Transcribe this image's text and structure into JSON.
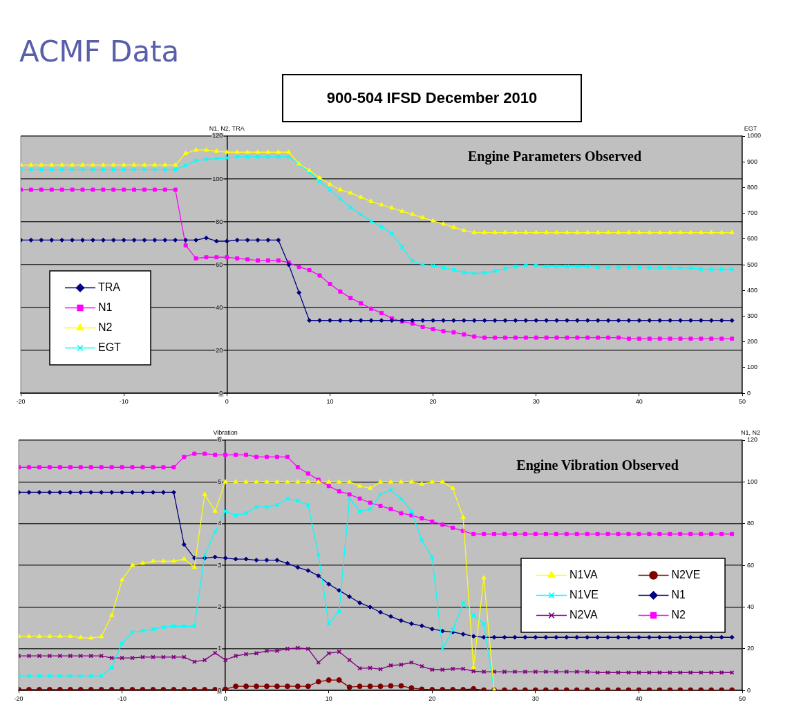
{
  "chart_data": [
    {
      "type": "line",
      "title": "Engine Parameters Observed",
      "annotations": [
        "ACMF Data",
        "900-504 IFSD December 2010"
      ],
      "ylabel": "N1, N2, TRA",
      "y2label": "EGT",
      "x": [
        -20,
        -19,
        -18,
        -17,
        -16,
        -15,
        -14,
        -13,
        -12,
        -11,
        -10,
        -9,
        -8,
        -7,
        -6,
        -5,
        -4,
        -3,
        -2,
        -1,
        0,
        1,
        2,
        3,
        4,
        5,
        6,
        7,
        8,
        9,
        10,
        11,
        12,
        13,
        14,
        15,
        16,
        17,
        18,
        19,
        20,
        21,
        22,
        23,
        24,
        25,
        26,
        27,
        28,
        29,
        30,
        31,
        32,
        33,
        34,
        35,
        36,
        37,
        38,
        39,
        40,
        41,
        42,
        43,
        44,
        45,
        46,
        47,
        48,
        49
      ],
      "xlim": [
        -20,
        50
      ],
      "xticks": [
        -20,
        -10,
        0,
        10,
        20,
        30,
        40,
        50
      ],
      "ylim": [
        0,
        120
      ],
      "yticks": [
        0,
        20,
        40,
        60,
        80,
        100,
        120
      ],
      "y2lim": [
        0,
        1000
      ],
      "y2ticks": [
        0,
        100,
        200,
        300,
        400,
        500,
        600,
        700,
        800,
        900,
        1000
      ],
      "grid": "y",
      "legend": "left",
      "series": [
        {
          "name": "TRA",
          "color": "#000080",
          "marker": "diamond",
          "values": [
            71.5,
            71.5,
            71.5,
            71.5,
            71.5,
            71.5,
            71.5,
            71.5,
            71.5,
            71.5,
            71.5,
            71.5,
            71.5,
            71.5,
            71.5,
            71.5,
            71.5,
            71.5,
            72.5,
            71,
            71,
            71.5,
            71.5,
            71.5,
            71.5,
            71.5,
            60,
            47,
            34,
            34,
            34,
            34,
            34,
            34,
            34,
            34,
            34,
            34,
            34,
            34,
            34,
            34,
            34,
            34,
            34,
            34,
            34,
            34,
            34,
            34,
            34,
            34,
            34,
            34,
            34,
            34,
            34,
            34,
            34,
            34,
            34,
            34,
            34,
            34,
            34,
            34,
            34,
            34,
            34,
            34
          ]
        },
        {
          "name": "N1",
          "color": "#ff00ff",
          "marker": "square",
          "values": [
            95,
            95,
            95,
            95,
            95,
            95,
            95,
            95,
            95,
            95,
            95,
            95,
            95,
            95,
            95,
            95,
            69,
            63,
            63.5,
            63.5,
            63.5,
            63,
            62.5,
            62,
            62,
            62,
            61,
            59,
            57.5,
            55,
            51,
            47.5,
            44.5,
            42,
            39.5,
            37.5,
            35,
            33.5,
            32.5,
            31,
            30,
            29,
            28.5,
            27.5,
            26.5,
            26,
            26,
            26,
            26,
            26,
            26,
            26,
            26,
            26,
            26,
            26,
            26,
            26,
            26,
            25.5,
            25.5,
            25.5,
            25.5,
            25.5,
            25.5,
            25.5,
            25.5,
            25.5,
            25.5,
            25.5
          ]
        },
        {
          "name": "N2",
          "color": "#ffff00",
          "marker": "triangle",
          "values": [
            106.5,
            106.5,
            106.5,
            106.5,
            106.5,
            106.5,
            106.5,
            106.5,
            106.5,
            106.5,
            106.5,
            106.5,
            106.5,
            106.5,
            106.5,
            106.5,
            112,
            113.5,
            113.5,
            113,
            112.5,
            112.5,
            112.5,
            112.5,
            112.5,
            112.5,
            112.5,
            107,
            104,
            100.5,
            97.5,
            95,
            93.5,
            91.5,
            89.5,
            88,
            86.5,
            85,
            83.5,
            82,
            80.5,
            79,
            77.5,
            76,
            75,
            75,
            75,
            75,
            75,
            75,
            75,
            75,
            75,
            75,
            75,
            75,
            75,
            75,
            75,
            75,
            75,
            75,
            75,
            75,
            75,
            75,
            75,
            75,
            75,
            75
          ]
        },
        {
          "name": "EGT",
          "color": "#00ffff",
          "marker": "cross",
          "axis": "y2",
          "values": [
            870,
            870,
            870,
            870,
            870,
            870,
            870,
            870,
            870,
            870,
            870,
            870,
            870,
            870,
            870,
            870,
            887,
            905,
            910,
            912,
            915,
            920,
            920,
            920,
            920,
            920,
            920,
            889,
            862,
            825,
            791,
            757,
            723,
            695,
            670,
            647,
            621,
            569,
            515,
            500,
            495,
            488,
            480,
            470,
            466,
            468,
            475,
            485,
            493,
            498,
            497,
            493,
            493,
            493,
            493,
            493,
            490,
            490,
            490,
            490,
            490,
            487,
            487,
            487,
            487,
            487,
            483,
            483,
            483,
            483
          ]
        }
      ]
    },
    {
      "type": "line",
      "title": "Engine Vibration Observed",
      "ylabel": "Vibration",
      "y2label": "N1, N2",
      "x": [
        -20,
        -19,
        -18,
        -17,
        -16,
        -15,
        -14,
        -13,
        -12,
        -11,
        -10,
        -9,
        -8,
        -7,
        -6,
        -5,
        -4,
        -3,
        -2,
        -1,
        0,
        1,
        2,
        3,
        4,
        5,
        6,
        7,
        8,
        9,
        10,
        11,
        12,
        13,
        14,
        15,
        16,
        17,
        18,
        19,
        20,
        21,
        22,
        23,
        24,
        25,
        26,
        27,
        28,
        29,
        30,
        31,
        32,
        33,
        34,
        35,
        36,
        37,
        38,
        39,
        40,
        41,
        42,
        43,
        44,
        45,
        46,
        47,
        48,
        49
      ],
      "xlim": [
        -20,
        50
      ],
      "xticks": [
        -20,
        -10,
        0,
        10,
        20,
        30,
        40,
        50
      ],
      "ylim": [
        0,
        6
      ],
      "yticks": [
        0,
        1,
        2,
        3,
        4,
        5,
        6
      ],
      "y2lim": [
        0,
        120
      ],
      "y2ticks": [
        0,
        20,
        40,
        60,
        80,
        100,
        120
      ],
      "grid": "y",
      "legend": "right",
      "series": [
        {
          "name": "N1VA",
          "color": "#ffff00",
          "marker": "triangle",
          "values": [
            1.3,
            1.3,
            1.3,
            1.3,
            1.3,
            1.3,
            1.27,
            1.26,
            1.29,
            1.8,
            2.65,
            3,
            3.05,
            3.1,
            3.1,
            3.1,
            3.15,
            2.95,
            4.7,
            4.3,
            5,
            5,
            5,
            5,
            5,
            5,
            5,
            5,
            5,
            5,
            5,
            5,
            5,
            4.9,
            4.85,
            5,
            5,
            5,
            5,
            4.95,
            5,
            5,
            4.85,
            4.15,
            0.55,
            2.7,
            0,
            null,
            null,
            null,
            null,
            null,
            null,
            null,
            null,
            null,
            null,
            null,
            null,
            null,
            null,
            null,
            null,
            null,
            null,
            null,
            null,
            null,
            null,
            null
          ]
        },
        {
          "name": "N1VE",
          "color": "#00ffff",
          "marker": "cross",
          "values": [
            0.35,
            0.35,
            0.35,
            0.35,
            0.35,
            0.35,
            0.35,
            0.35,
            0.35,
            0.55,
            1.13,
            1.4,
            1.43,
            1.47,
            1.52,
            1.54,
            1.54,
            1.54,
            3.25,
            3.8,
            4.3,
            4.2,
            4.25,
            4.4,
            4.4,
            4.45,
            4.6,
            4.55,
            4.45,
            3.25,
            1.6,
            1.9,
            4.6,
            4.3,
            4.35,
            4.7,
            4.8,
            4.6,
            4.3,
            3.6,
            3.2,
            1,
            1.45,
            2.1,
            1.8,
            1.6,
            0,
            null,
            null,
            null,
            null,
            null,
            null,
            null,
            null,
            null,
            null,
            null,
            null,
            null,
            null,
            null,
            null,
            null,
            null,
            null,
            null,
            null,
            null,
            null
          ]
        },
        {
          "name": "N2VA",
          "color": "#800080",
          "marker": "cross",
          "values": [
            0.83,
            0.83,
            0.83,
            0.83,
            0.83,
            0.83,
            0.83,
            0.83,
            0.83,
            0.78,
            0.78,
            0.78,
            0.8,
            0.8,
            0.8,
            0.8,
            0.8,
            0.69,
            0.73,
            0.9,
            0.73,
            0.83,
            0.87,
            0.89,
            0.95,
            0.95,
            1,
            1.02,
            1,
            0.67,
            0.89,
            0.93,
            0.73,
            0.53,
            0.54,
            0.51,
            0.6,
            0.62,
            0.67,
            0.58,
            0.5,
            0.5,
            0.52,
            0.52,
            0.46,
            0.45,
            0.45,
            0.45,
            0.45,
            0.45,
            0.45,
            0.45,
            0.45,
            0.45,
            0.45,
            0.45,
            0.43,
            0.43,
            0.43,
            0.43,
            0.43,
            0.43,
            0.43,
            0.43,
            0.43,
            0.43,
            0.43,
            0.43,
            0.43,
            0.43
          ]
        },
        {
          "name": "N2VE",
          "color": "#800000",
          "marker": "circle",
          "values": [
            0.02,
            0.02,
            0.02,
            0.02,
            0.02,
            0.02,
            0.02,
            0.02,
            0.02,
            0.02,
            0.02,
            0.02,
            0.02,
            0.02,
            0.02,
            0.02,
            0.02,
            0.02,
            0.02,
            0.02,
            0.03,
            0.1,
            0.1,
            0.1,
            0.1,
            0.1,
            0.1,
            0.1,
            0.1,
            0.21,
            0.25,
            0.25,
            0.08,
            0.1,
            0.1,
            0.1,
            0.11,
            0.11,
            0.06,
            0.03,
            0.02,
            0.02,
            0.02,
            0.02,
            0.04,
            0.01,
            0.01,
            0.01,
            0.01,
            0.01,
            0.01,
            0.01,
            0.01,
            0.01,
            0.01,
            0.01,
            0.01,
            0.01,
            0.01,
            0.01,
            0.01,
            0.01,
            0.01,
            0.01,
            0.01,
            0.01,
            0.01,
            0.01,
            0.01,
            0.01
          ]
        },
        {
          "name": "N1",
          "color": "#000080",
          "marker": "diamond",
          "axis": "y2",
          "values": [
            95,
            95,
            95,
            95,
            95,
            95,
            95,
            95,
            95,
            95,
            95,
            95,
            95,
            95,
            95,
            95,
            70,
            63.5,
            63.5,
            64,
            63.5,
            63,
            63,
            62.5,
            62.5,
            62.5,
            61,
            59,
            57.5,
            55,
            51,
            48,
            45,
            42,
            40,
            37.5,
            35.5,
            33.5,
            32,
            31,
            29.5,
            28.5,
            28,
            27,
            26,
            25.5,
            25.5,
            25.5,
            25.5,
            25.5,
            25.5,
            25.5,
            25.5,
            25.5,
            25.5,
            25.5,
            25.5,
            25.5,
            25.5,
            25.5,
            25.5,
            25.5,
            25.5,
            25.5,
            25.5,
            25.5,
            25.5,
            25.5,
            25.5,
            25.5
          ]
        },
        {
          "name": "N2",
          "color": "#ff00ff",
          "marker": "square",
          "axis": "y2",
          "values": [
            107,
            107,
            107,
            107,
            107,
            107,
            107,
            107,
            107,
            107,
            107,
            107,
            107,
            107,
            107,
            107,
            112,
            113.5,
            113.5,
            113,
            113,
            113,
            113,
            112,
            112,
            112,
            112,
            107,
            104,
            101,
            98,
            95.5,
            94,
            92,
            90,
            88.5,
            87,
            85,
            84,
            82.5,
            81,
            79.5,
            78,
            76.5,
            75,
            75,
            75,
            75,
            75,
            75,
            75,
            75,
            75,
            75,
            75,
            75,
            75,
            75,
            75,
            75,
            75,
            75,
            75,
            75,
            75,
            75,
            75,
            75,
            75,
            75
          ]
        }
      ]
    }
  ]
}
